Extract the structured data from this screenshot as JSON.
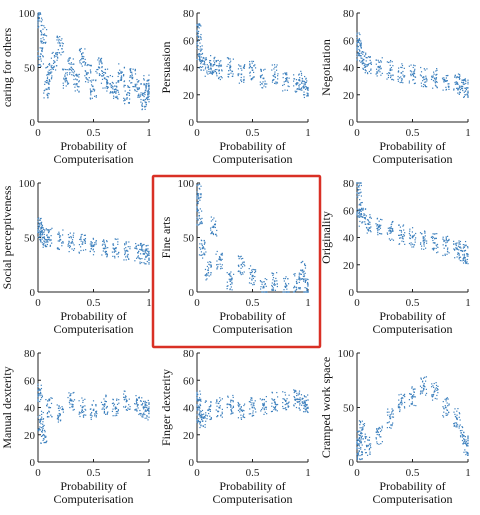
{
  "chart_data": [
    {
      "type": "scatter",
      "ylabel": "caring for others",
      "xlabel": "Probability of Computerisation",
      "xlim": [
        0,
        1
      ],
      "ylim": [
        0,
        100
      ],
      "xticks": [
        "0",
        "0.5",
        "1"
      ],
      "yticks": [
        "0",
        "50",
        "100"
      ],
      "points": [
        [
          0.01,
          95
        ],
        [
          0.02,
          60
        ],
        [
          0.05,
          80
        ],
        [
          0.08,
          30
        ],
        [
          0.1,
          45
        ],
        [
          0.15,
          55
        ],
        [
          0.2,
          70
        ],
        [
          0.25,
          40
        ],
        [
          0.3,
          50
        ],
        [
          0.35,
          35
        ],
        [
          0.4,
          60
        ],
        [
          0.45,
          45
        ],
        [
          0.5,
          30
        ],
        [
          0.55,
          50
        ],
        [
          0.6,
          40
        ],
        [
          0.65,
          35
        ],
        [
          0.7,
          30
        ],
        [
          0.75,
          45
        ],
        [
          0.8,
          25
        ],
        [
          0.85,
          40
        ],
        [
          0.9,
          30
        ],
        [
          0.95,
          20
        ],
        [
          0.98,
          35
        ],
        [
          0.99,
          25
        ]
      ],
      "highlighted": false
    },
    {
      "type": "scatter",
      "ylabel": "Persuasion",
      "xlabel": "Probability of Computerisation",
      "xlim": [
        0,
        1
      ],
      "ylim": [
        0,
        80
      ],
      "xticks": [
        "0",
        "0.5",
        "1"
      ],
      "yticks": [
        "0",
        "20",
        "40",
        "60",
        "80"
      ],
      "points": [
        [
          0.01,
          65
        ],
        [
          0.02,
          50
        ],
        [
          0.05,
          45
        ],
        [
          0.1,
          40
        ],
        [
          0.15,
          42
        ],
        [
          0.2,
          38
        ],
        [
          0.3,
          40
        ],
        [
          0.4,
          35
        ],
        [
          0.5,
          38
        ],
        [
          0.6,
          32
        ],
        [
          0.7,
          35
        ],
        [
          0.8,
          30
        ],
        [
          0.9,
          28
        ],
        [
          0.95,
          30
        ],
        [
          0.99,
          25
        ]
      ],
      "highlighted": false
    },
    {
      "type": "scatter",
      "ylabel": "Negotiation",
      "xlabel": "Probability of Computerisation",
      "xlim": [
        0,
        1
      ],
      "ylim": [
        0,
        80
      ],
      "xticks": [
        "0",
        "0.5",
        "1"
      ],
      "yticks": [
        "0",
        "20",
        "40",
        "60",
        "80"
      ],
      "points": [
        [
          0.01,
          60
        ],
        [
          0.02,
          50
        ],
        [
          0.05,
          45
        ],
        [
          0.1,
          42
        ],
        [
          0.2,
          40
        ],
        [
          0.3,
          38
        ],
        [
          0.4,
          36
        ],
        [
          0.5,
          35
        ],
        [
          0.6,
          33
        ],
        [
          0.7,
          32
        ],
        [
          0.8,
          30
        ],
        [
          0.9,
          28
        ],
        [
          0.95,
          26
        ],
        [
          0.99,
          25
        ]
      ],
      "highlighted": false
    },
    {
      "type": "scatter",
      "ylabel": "Social perceptiveness",
      "xlabel": "Probability of Computerisation",
      "xlim": [
        0,
        1
      ],
      "ylim": [
        0,
        100
      ],
      "xticks": [
        "0",
        "0.5",
        "1"
      ],
      "yticks": [
        "0",
        "50",
        "100"
      ],
      "points": [
        [
          0.01,
          60
        ],
        [
          0.02,
          55
        ],
        [
          0.05,
          50
        ],
        [
          0.1,
          50
        ],
        [
          0.2,
          48
        ],
        [
          0.3,
          45
        ],
        [
          0.4,
          44
        ],
        [
          0.5,
          42
        ],
        [
          0.6,
          40
        ],
        [
          0.7,
          40
        ],
        [
          0.8,
          38
        ],
        [
          0.9,
          36
        ],
        [
          0.95,
          35
        ],
        [
          0.99,
          34
        ]
      ],
      "highlighted": false
    },
    {
      "type": "scatter",
      "ylabel": "Fine arts",
      "xlabel": "Probability of Computerisation",
      "xlim": [
        0,
        1
      ],
      "ylim": [
        0,
        100
      ],
      "xticks": [
        "0",
        "0.5",
        "1"
      ],
      "yticks": [
        "0",
        "50",
        "100"
      ],
      "points": [
        [
          0.01,
          90
        ],
        [
          0.02,
          70
        ],
        [
          0.05,
          40
        ],
        [
          0.1,
          20
        ],
        [
          0.15,
          60
        ],
        [
          0.2,
          30
        ],
        [
          0.3,
          10
        ],
        [
          0.4,
          25
        ],
        [
          0.5,
          15
        ],
        [
          0.6,
          5
        ],
        [
          0.7,
          10
        ],
        [
          0.8,
          5
        ],
        [
          0.9,
          8
        ],
        [
          0.95,
          20
        ],
        [
          0.99,
          3
        ]
      ],
      "highlighted": true
    },
    {
      "type": "scatter",
      "ylabel": "Originality",
      "xlabel": "Probability of Computerisation",
      "xlim": [
        0,
        1
      ],
      "ylim": [
        0,
        80
      ],
      "xticks": [
        "0",
        "0.5",
        "1"
      ],
      "yticks": [
        "0",
        "20",
        "40",
        "60",
        "80"
      ],
      "points": [
        [
          0.01,
          75
        ],
        [
          0.02,
          60
        ],
        [
          0.05,
          55
        ],
        [
          0.1,
          50
        ],
        [
          0.2,
          48
        ],
        [
          0.3,
          45
        ],
        [
          0.4,
          42
        ],
        [
          0.5,
          40
        ],
        [
          0.6,
          38
        ],
        [
          0.7,
          36
        ],
        [
          0.8,
          34
        ],
        [
          0.9,
          32
        ],
        [
          0.95,
          30
        ],
        [
          0.99,
          28
        ]
      ],
      "highlighted": false
    },
    {
      "type": "scatter",
      "ylabel": "Manual dexterity",
      "xlabel": "Probability of Computerisation",
      "xlim": [
        0,
        1
      ],
      "ylim": [
        0,
        80
      ],
      "xticks": [
        "0",
        "0.5",
        "1"
      ],
      "yticks": [
        "0",
        "20",
        "40",
        "60",
        "80"
      ],
      "points": [
        [
          0.01,
          50
        ],
        [
          0.02,
          30
        ],
        [
          0.05,
          20
        ],
        [
          0.1,
          40
        ],
        [
          0.2,
          35
        ],
        [
          0.3,
          45
        ],
        [
          0.4,
          40
        ],
        [
          0.5,
          38
        ],
        [
          0.6,
          42
        ],
        [
          0.7,
          40
        ],
        [
          0.8,
          45
        ],
        [
          0.9,
          42
        ],
        [
          0.95,
          40
        ],
        [
          0.99,
          38
        ]
      ],
      "highlighted": false
    },
    {
      "type": "scatter",
      "ylabel": "Finger dexterity",
      "xlabel": "Probability of Computerisation",
      "xlim": [
        0,
        1
      ],
      "ylim": [
        0,
        80
      ],
      "xticks": [
        "0",
        "0.5",
        "1"
      ],
      "yticks": [
        "0",
        "20",
        "40",
        "60",
        "80"
      ],
      "points": [
        [
          0.01,
          45
        ],
        [
          0.02,
          35
        ],
        [
          0.05,
          30
        ],
        [
          0.1,
          38
        ],
        [
          0.2,
          40
        ],
        [
          0.3,
          42
        ],
        [
          0.4,
          38
        ],
        [
          0.5,
          40
        ],
        [
          0.6,
          42
        ],
        [
          0.7,
          44
        ],
        [
          0.8,
          45
        ],
        [
          0.9,
          46
        ],
        [
          0.95,
          44
        ],
        [
          0.99,
          42
        ]
      ],
      "highlighted": false
    },
    {
      "type": "scatter",
      "ylabel": "Cramped work space",
      "xlabel": "Probability of Computerisation",
      "xlim": [
        0,
        1
      ],
      "ylim": [
        0,
        100
      ],
      "xticks": [
        "0",
        "0.5",
        "1"
      ],
      "yticks": [
        "0",
        "50",
        "100"
      ],
      "points": [
        [
          0.01,
          20
        ],
        [
          0.02,
          10
        ],
        [
          0.05,
          30
        ],
        [
          0.1,
          15
        ],
        [
          0.2,
          25
        ],
        [
          0.3,
          40
        ],
        [
          0.4,
          55
        ],
        [
          0.5,
          60
        ],
        [
          0.6,
          70
        ],
        [
          0.7,
          65
        ],
        [
          0.8,
          50
        ],
        [
          0.9,
          40
        ],
        [
          0.95,
          25
        ],
        [
          0.99,
          15
        ]
      ],
      "highlighted": false
    }
  ],
  "style": {
    "point_color": "#3b7fbd",
    "highlight_color": "#d93025"
  }
}
